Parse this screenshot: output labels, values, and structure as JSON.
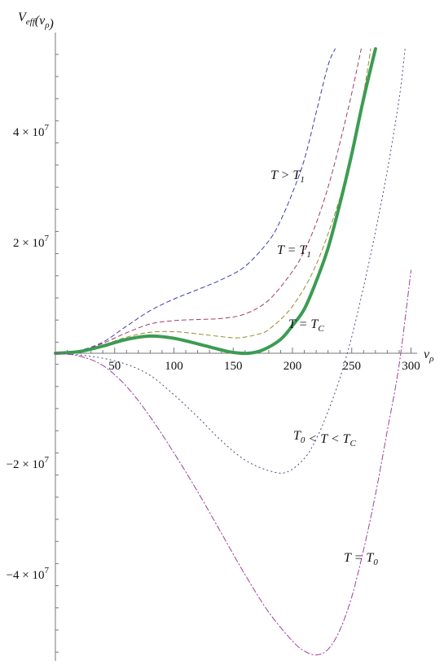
{
  "chart_data": {
    "type": "line",
    "ylabel": "V_eff(v_ρ)",
    "xlabel": "v_ρ",
    "xlim": [
      0,
      310
    ],
    "ylim": [
      -55500000,
      55500000
    ],
    "x_ticks": [
      50,
      100,
      150,
      200,
      250,
      300
    ],
    "y_ticks": [
      {
        "value": 40000000,
        "label": "4×10^7"
      },
      {
        "value": 20000000,
        "label": "2×10^7"
      },
      {
        "value": -20000000,
        "label": "−2×10^7"
      },
      {
        "value": -40000000,
        "label": "−4×10^7"
      }
    ],
    "grid": false,
    "series": [
      {
        "name": "T > T₁",
        "color": "#3b3bb5",
        "style": "dashed",
        "x": [
          0,
          20,
          40,
          60,
          80,
          100,
          120,
          140,
          160,
          180,
          190,
          200,
          210,
          220,
          230,
          236
        ],
        "y": [
          0,
          500000,
          2000000,
          4900000,
          7700000,
          9800000,
          11500000,
          13300000,
          15700000,
          20300000,
          24000000,
          29000000,
          35000000,
          43500000,
          52000000,
          55000000
        ]
      },
      {
        "name": "T = T₁",
        "color": "#a33a6a",
        "style": "dashed",
        "x": [
          0,
          20,
          40,
          60,
          80,
          100,
          120,
          140,
          160,
          180,
          200,
          210,
          220,
          230,
          240,
          250,
          258
        ],
        "y": [
          0,
          400000,
          1800000,
          3700000,
          5300000,
          5900000,
          6100000,
          6300000,
          7100000,
          9600000,
          14800000,
          18500000,
          23500000,
          30000000,
          38000000,
          47000000,
          55000000
        ]
      },
      {
        "name": "",
        "color": "#9a8a2c",
        "style": "dashed",
        "x": [
          0,
          20,
          40,
          60,
          80,
          100,
          120,
          140,
          155,
          170,
          180,
          200,
          220,
          240,
          250,
          260,
          266
        ],
        "y": [
          0,
          300000,
          1500000,
          2900000,
          3800000,
          3900000,
          3500000,
          3000000,
          2800000,
          3400000,
          4300000,
          8500000,
          16000000,
          28000000,
          36500000,
          47000000,
          55000000
        ]
      },
      {
        "name": "T = T_C",
        "color": "#3c9c52",
        "style": "solid",
        "x": [
          0,
          20,
          40,
          60,
          80,
          100,
          120,
          140,
          150,
          163,
          175,
          190,
          200,
          210,
          220,
          230,
          240,
          250,
          260,
          270
        ],
        "y": [
          0,
          300000,
          1300000,
          2500000,
          3100000,
          2700000,
          1700000,
          600000,
          150000,
          0,
          600000,
          2500000,
          5000000,
          8000000,
          13000000,
          19000000,
          27000000,
          36000000,
          46000000,
          55000000
        ]
      },
      {
        "name": "T₀ < T < T_C",
        "color": "#4a4a7a",
        "style": "dotted",
        "x": [
          0,
          20,
          40,
          60,
          80,
          100,
          120,
          140,
          160,
          180,
          195,
          210,
          220,
          230,
          240,
          250,
          260,
          270,
          280,
          290,
          295
        ],
        "y": [
          0,
          -300000,
          -900000,
          -2000000,
          -4000000,
          -7500000,
          -11500000,
          -15800000,
          -19300000,
          -21200000,
          -21500000,
          -19000000,
          -15500000,
          -10500000,
          -4500000,
          3000000,
          12000000,
          22000000,
          33000000,
          46000000,
          55000000
        ]
      },
      {
        "name": "T = T₀",
        "color": "#a040a0",
        "style": "dashdot",
        "x": [
          0,
          20,
          40,
          60,
          80,
          100,
          120,
          140,
          160,
          180,
          200,
          210,
          220,
          230,
          240,
          250,
          260,
          270,
          280,
          290,
          300
        ],
        "y": [
          0,
          -500000,
          -2200000,
          -6000000,
          -11500000,
          -18000000,
          -25000000,
          -32500000,
          -40000000,
          -46800000,
          -52000000,
          -53800000,
          -54500000,
          -53500000,
          -50000000,
          -44000000,
          -35500000,
          -25500000,
          -14000000,
          -2000000,
          15000000
        ]
      }
    ],
    "annotations": [
      {
        "text": "T > T₁",
        "series": 0
      },
      {
        "text": "T = T₁",
        "series": 1
      },
      {
        "text": "T = T_C",
        "series": 3
      },
      {
        "text": "T₀ < T < T_C",
        "series": 4
      },
      {
        "text": "T = T₀",
        "series": 5
      }
    ]
  }
}
